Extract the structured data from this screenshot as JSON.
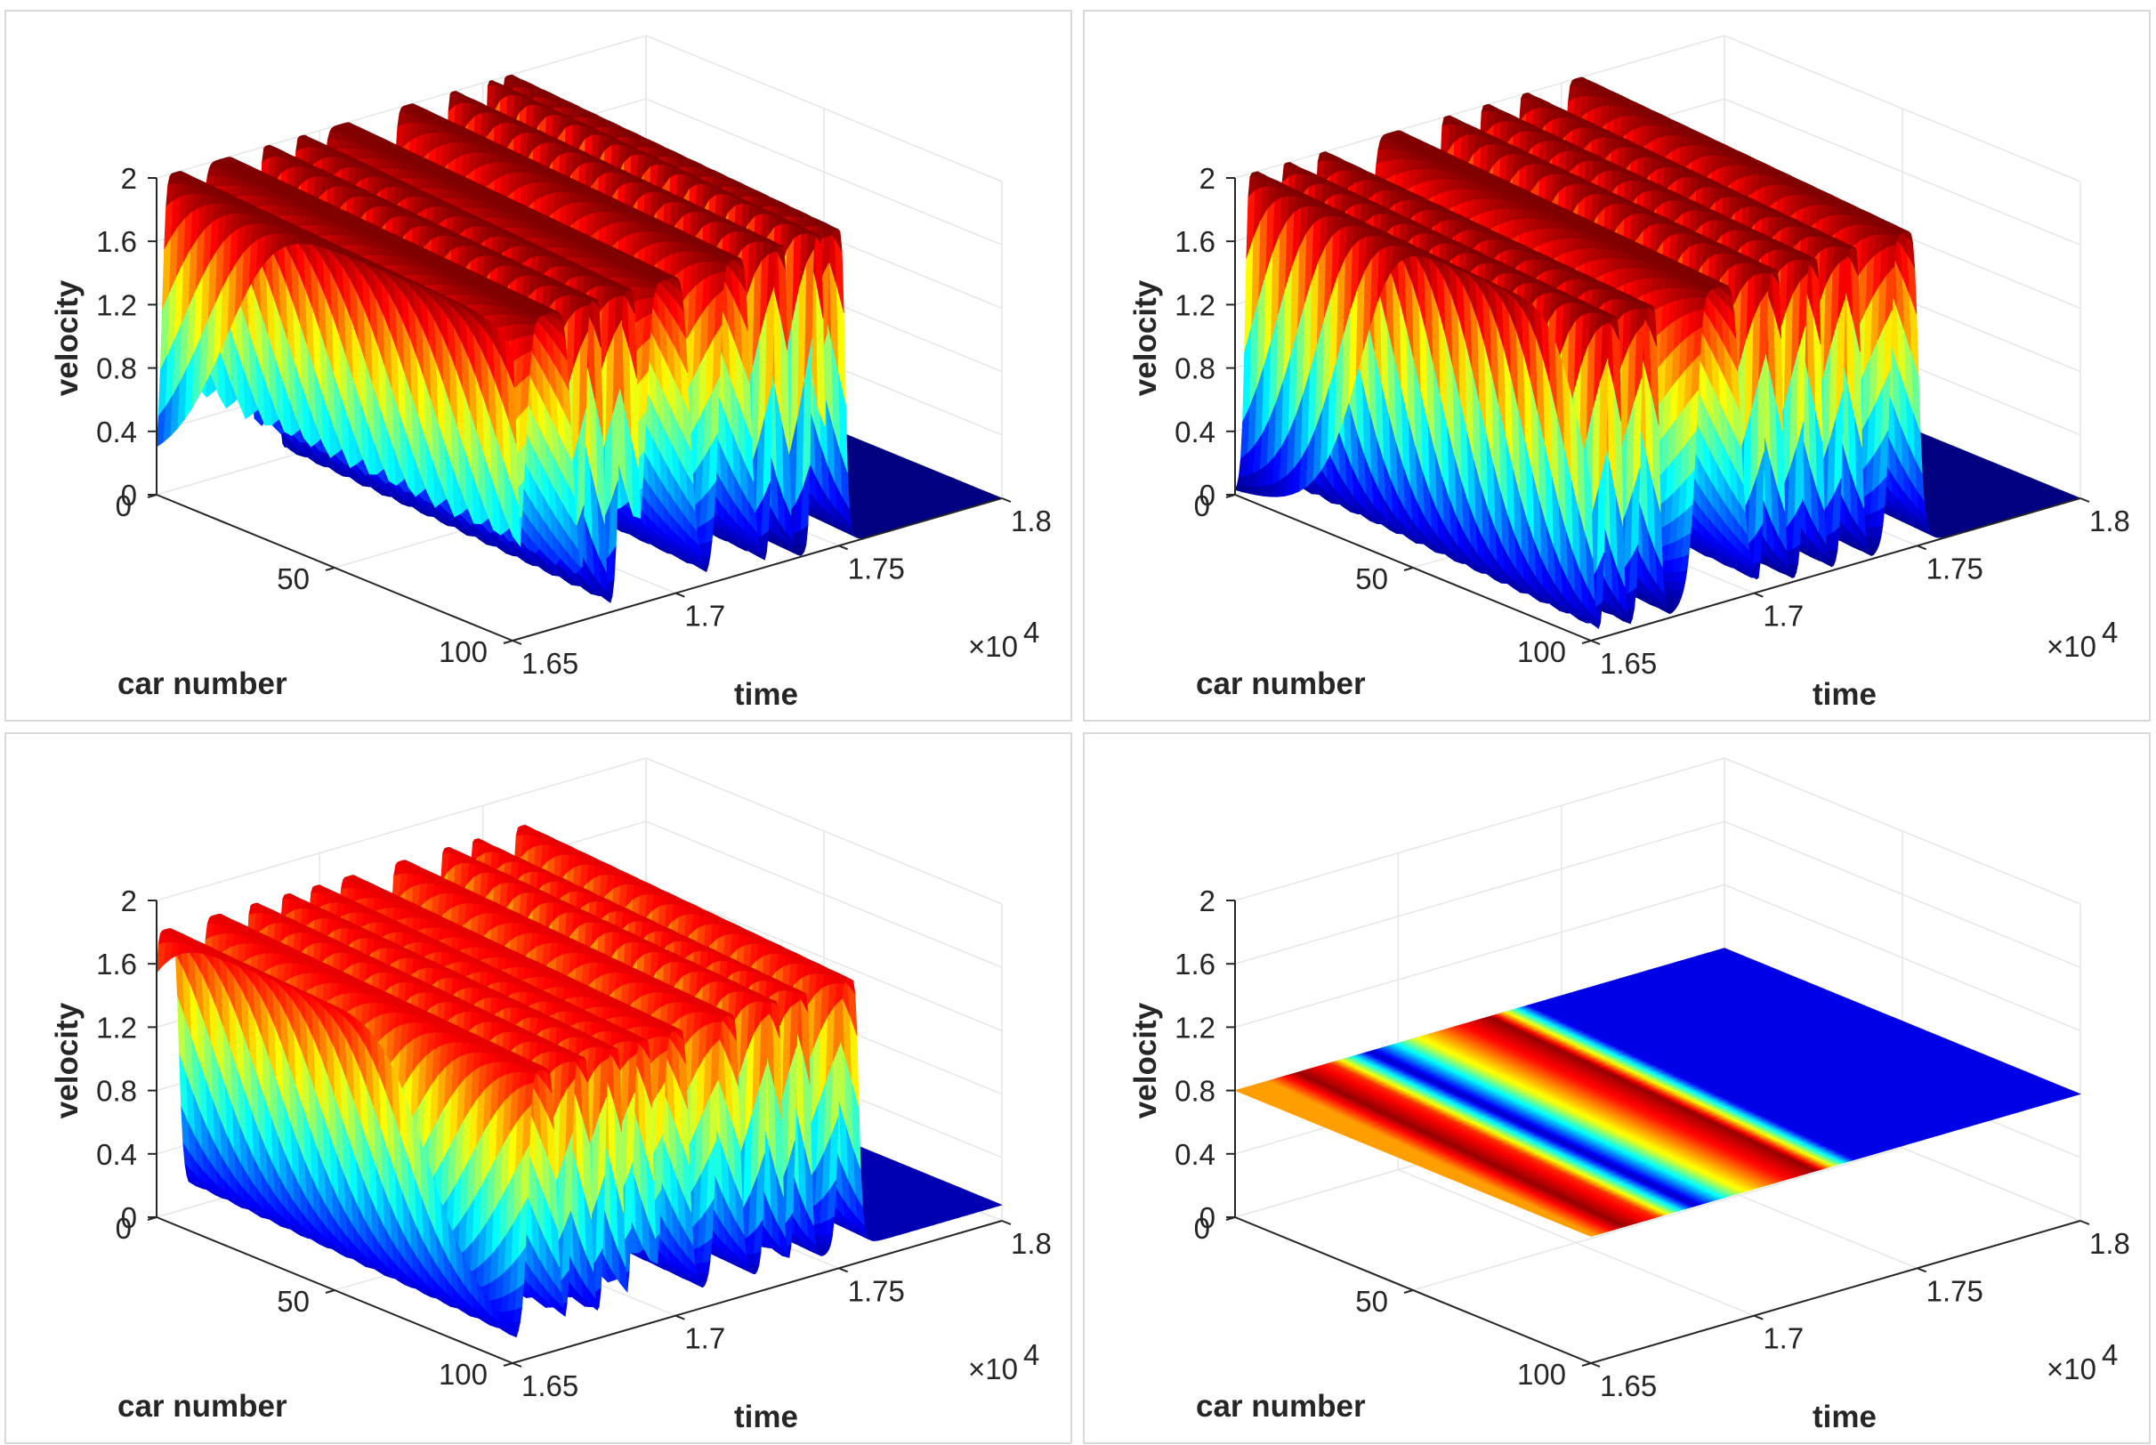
{
  "chart_data": [
    {
      "type": "surface",
      "xlabel": "car number",
      "ylabel": "time",
      "zlabel": "velocity",
      "car_number_ticks": [
        "0",
        "50",
        "100"
      ],
      "time_ticks": [
        "1.65",
        "1.7",
        "1.75",
        "1.8"
      ],
      "time_exponent": {
        "base": "×10",
        "exp": "4"
      },
      "velocity_ticks": [
        "0",
        "0.4",
        "0.8",
        "1.2",
        "1.6",
        "2"
      ],
      "xlim": [
        0,
        100
      ],
      "ylim": [
        16500,
        18000
      ],
      "zlim": [
        0,
        2
      ],
      "grid": true,
      "colormap": "jet",
      "description_values": {
        "wave_centers_time": [
          16560,
          16700,
          16840,
          16945,
          17065,
          17270,
          17410,
          17525,
          17580
        ],
        "wave_widths_time": [
          45,
          75,
          28,
          30,
          70,
          50,
          25,
          20,
          30
        ],
        "velocity_min": 0.0,
        "velocity_max": 2.0,
        "wave_speed_time_per_car": -0.9
      }
    },
    {
      "type": "surface",
      "xlabel": "car number",
      "ylabel": "time",
      "zlabel": "velocity",
      "car_number_ticks": [
        "0",
        "50",
        "100"
      ],
      "time_ticks": [
        "1.65",
        "1.7",
        "1.75",
        "1.8"
      ],
      "time_exponent": {
        "base": "×10",
        "exp": "4"
      },
      "velocity_ticks": [
        "0",
        "0.4",
        "0.8",
        "1.2",
        "1.6",
        "2"
      ],
      "xlim": [
        0,
        100
      ],
      "ylim": [
        16500,
        18000
      ],
      "zlim": [
        0,
        2
      ],
      "grid": true,
      "colormap": "jet",
      "description_values": {
        "wave_centers_time": [
          16560,
          16660,
          16770,
          16980,
          17150,
          17270,
          17390,
          17550
        ],
        "wave_widths_time": [
          30,
          25,
          30,
          70,
          28,
          28,
          28,
          45
        ],
        "velocity_min": 0.0,
        "velocity_max": 2.0,
        "wave_speed_time_per_car": -0.9
      }
    },
    {
      "type": "surface",
      "xlabel": "car number",
      "ylabel": "time",
      "zlabel": "velocity",
      "car_number_ticks": [
        "0",
        "50",
        "100"
      ],
      "time_ticks": [
        "1.65",
        "1.7",
        "1.75",
        "1.8"
      ],
      "time_exponent": {
        "base": "×10",
        "exp": "4"
      },
      "velocity_ticks": [
        "0",
        "0.4",
        "0.8",
        "1.2",
        "1.6",
        "2"
      ],
      "xlim": [
        0,
        100
      ],
      "ylim": [
        16500,
        18000
      ],
      "zlim": [
        0,
        2
      ],
      "grid": true,
      "colormap": "jet",
      "description_values": {
        "wave_centers_time": [
          16530,
          16680,
          16800,
          16900,
          16990,
          17090,
          17250,
          17390,
          17480,
          17620
        ],
        "wave_widths_time": [
          40,
          45,
          30,
          28,
          32,
          42,
          38,
          26,
          24,
          32
        ],
        "velocity_min": 0.1,
        "velocity_max": 1.8,
        "wave_speed_time_per_car": -0.9
      }
    },
    {
      "type": "surface",
      "xlabel": "car number",
      "ylabel": "time",
      "zlabel": "velocity",
      "car_number_ticks": [
        "0",
        "50",
        "100"
      ],
      "time_ticks": [
        "1.65",
        "1.7",
        "1.75",
        "1.8"
      ],
      "time_exponent": {
        "base": "×10",
        "exp": "4"
      },
      "velocity_ticks": [
        "0",
        "0.4",
        "0.8",
        "1.2",
        "1.6",
        "2"
      ],
      "xlim": [
        0,
        100
      ],
      "ylim": [
        16500,
        18000
      ],
      "zlim": [
        0,
        2
      ],
      "grid": true,
      "colormap": "jet",
      "description_values": {
        "velocity_level": 0.8,
        "flat_surface": true,
        "color_bands_time": [
          16600,
          16690,
          16790,
          16910,
          17050,
          17180,
          17280,
          17400
        ],
        "color_band_values": [
          0.72,
          0.98,
          0.83,
          0.06,
          0.6,
          0.85,
          0.98,
          0.1
        ]
      }
    }
  ]
}
